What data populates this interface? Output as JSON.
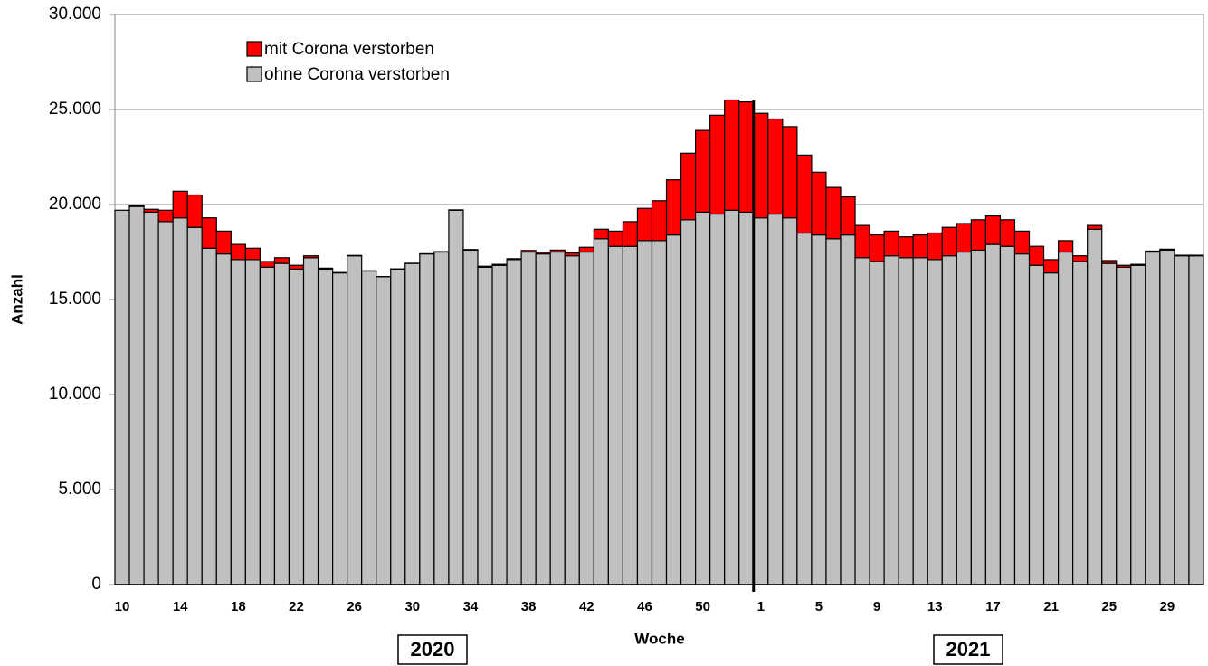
{
  "chart_data": {
    "type": "stacked_bar",
    "x_label": "Woche",
    "y_label": "Anzahl",
    "year_labels": [
      "2020",
      "2021"
    ],
    "categories": [
      "10",
      null,
      null,
      null,
      "14",
      null,
      null,
      null,
      "18",
      null,
      null,
      null,
      "22",
      null,
      null,
      null,
      "26",
      null,
      null,
      null,
      "30",
      null,
      null,
      null,
      "34",
      null,
      null,
      null,
      "38",
      null,
      null,
      null,
      "42",
      null,
      null,
      null,
      "46",
      null,
      null,
      null,
      "50",
      null,
      null,
      null,
      "1",
      null,
      null,
      null,
      "5",
      null,
      null,
      null,
      "9",
      null,
      null,
      null,
      "13",
      null,
      null,
      null,
      "17",
      null,
      null,
      null,
      "21",
      null,
      null,
      null,
      "25",
      null,
      null,
      null,
      "29",
      null,
      null
    ],
    "series": [
      {
        "name": "ohne Corona verstorben",
        "color": "#c0c0c0",
        "values": [
          19700,
          19900,
          19600,
          19100,
          19300,
          18800,
          17700,
          17400,
          17100,
          17100,
          16700,
          16900,
          16600,
          17200,
          16600,
          16400,
          17300,
          16500,
          16200,
          16600,
          16900,
          17400,
          17500,
          19700,
          17600,
          16700,
          16800,
          17100,
          17500,
          17400,
          17500,
          17300,
          17500,
          18200,
          17800,
          17800,
          18100,
          18100,
          18400,
          19200,
          19600,
          19500,
          19700,
          19600,
          19300,
          19500,
          19300,
          18500,
          18400,
          18200,
          18400,
          17200,
          17000,
          17300,
          17200,
          17200,
          17100,
          17300,
          17500,
          17600,
          17900,
          17800,
          17400,
          16800,
          16400,
          17500,
          17000,
          18700,
          16900,
          16700,
          16800,
          17500,
          17600,
          17300,
          17300
        ]
      },
      {
        "name": "mit Corona verstorben",
        "color": "#ff0000",
        "values": [
          0,
          50,
          150,
          600,
          1400,
          1700,
          1600,
          1200,
          800,
          600,
          300,
          300,
          200,
          100,
          50,
          20,
          20,
          10,
          10,
          10,
          10,
          10,
          20,
          20,
          30,
          50,
          50,
          50,
          80,
          80,
          100,
          150,
          250,
          500,
          800,
          1300,
          1700,
          2100,
          2900,
          3500,
          4300,
          5200,
          5800,
          5800,
          5500,
          5000,
          4800,
          4100,
          3300,
          2700,
          2000,
          1700,
          1400,
          1300,
          1100,
          1200,
          1400,
          1500,
          1500,
          1600,
          1500,
          1400,
          1200,
          1000,
          700,
          600,
          300,
          200,
          150,
          100,
          50,
          50,
          50,
          30,
          30
        ]
      }
    ],
    "ylim": [
      0,
      30000
    ],
    "yticks": [
      0,
      {
        "value": 5000,
        "label": "5.000"
      },
      {
        "value": 10000,
        "label": "10.000"
      },
      {
        "value": 15000,
        "label": "15.000"
      },
      {
        "value": 20000,
        "label": "20.000"
      },
      {
        "value": 25000,
        "label": "25.000"
      },
      {
        "value": 30000,
        "label": "30.000"
      }
    ],
    "grid": true
  }
}
